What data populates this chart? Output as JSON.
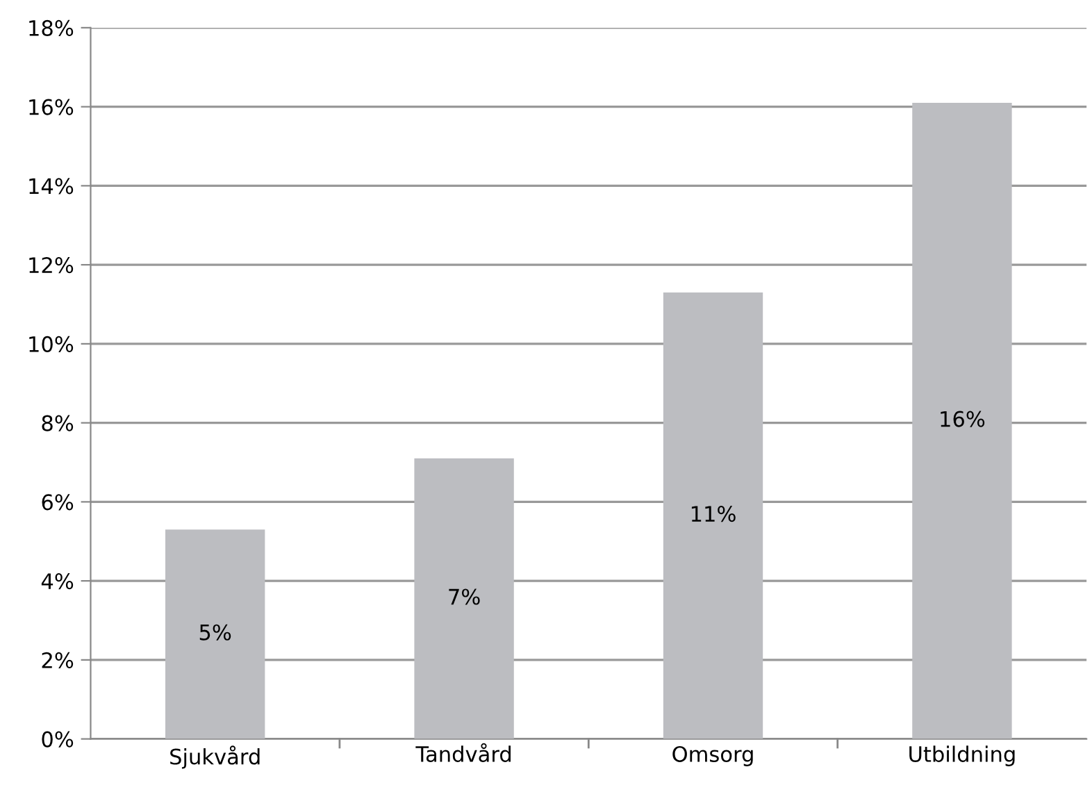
{
  "chart_data": {
    "type": "bar",
    "categories": [
      "Sjukvård",
      "Tandvård",
      "Omsorg",
      "Utbildning"
    ],
    "values": [
      5.3,
      7.1,
      11.3,
      16.1
    ],
    "value_labels": [
      "5%",
      "7%",
      "11%",
      "16%"
    ],
    "color": "#bcbdc1",
    "ylim": [
      0,
      18
    ],
    "yticks": [
      {
        "value": 0,
        "label": "0%"
      },
      {
        "value": 2,
        "label": "2%"
      },
      {
        "value": 4,
        "label": "4%"
      },
      {
        "value": 6,
        "label": "6%"
      },
      {
        "value": 8,
        "label": "8%"
      },
      {
        "value": 10,
        "label": "10%"
      },
      {
        "value": 12,
        "label": "12%"
      },
      {
        "value": 14,
        "label": "14%"
      },
      {
        "value": 16,
        "label": "16%"
      },
      {
        "value": 18,
        "label": "18%"
      }
    ],
    "grid": "y"
  }
}
